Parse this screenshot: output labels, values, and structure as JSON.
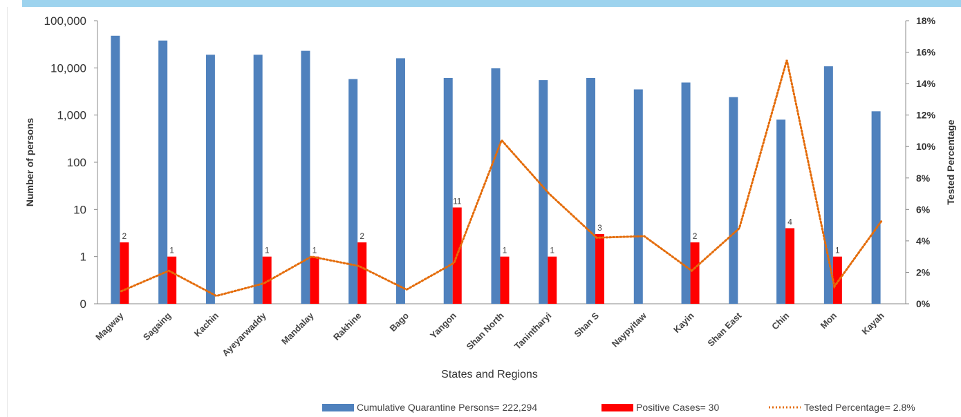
{
  "chart_data": {
    "type": "bar",
    "title": "",
    "xlabel": "States and Regions",
    "ylabel": "Number of persons",
    "y2label": "Tested Percentage",
    "yscale": "log",
    "y_ticks": [
      "100,000",
      "10,000",
      "1,000",
      "100",
      "10",
      "1",
      "0"
    ],
    "y2_ticks": [
      "18%",
      "16%",
      "14%",
      "12%",
      "10%",
      "8%",
      "6%",
      "4%",
      "2%",
      "0%"
    ],
    "y2lim": [
      0,
      18
    ],
    "categories": [
      "Magway",
      "Sagaing",
      "Kachin",
      "Ayeyarwaddy",
      "Mandalay",
      "Rakhine",
      "Bago",
      "Yangon",
      "Shan North",
      "Tanintharyi",
      "Shan S",
      "Naypyitaw",
      "Kayin",
      "Shan East",
      "Chin",
      "Mon",
      "Kayah"
    ],
    "series": [
      {
        "name": "Cumulative Quarantine Persons= 222,294",
        "kind": "bar",
        "axis": "left",
        "color": "#4f81bd",
        "values": [
          48000,
          38000,
          19000,
          19000,
          23000,
          5800,
          16000,
          6100,
          9800,
          5500,
          6100,
          3500,
          4900,
          2400,
          800,
          10800,
          1200
        ]
      },
      {
        "name": "Positive Cases= 30",
        "kind": "bar",
        "axis": "left",
        "color": "#ff0000",
        "values": [
          2,
          1,
          null,
          1,
          1,
          2,
          null,
          11,
          1,
          1,
          3,
          null,
          2,
          null,
          4,
          1,
          null
        ],
        "labels": [
          "2",
          "1",
          "",
          "1",
          "1",
          "2",
          "",
          "11",
          "1",
          "1",
          "3",
          "",
          "2",
          "",
          "4",
          "1",
          ""
        ]
      },
      {
        "name": "Tested Percentage= 2.8%",
        "kind": "line",
        "style": "dotted",
        "axis": "right",
        "color": "#e46c0a",
        "values": [
          0.8,
          2.1,
          0.5,
          1.3,
          3.0,
          2.4,
          0.9,
          2.6,
          10.4,
          7.0,
          4.2,
          4.3,
          2.1,
          4.8,
          15.5,
          1.1,
          5.3
        ]
      }
    ],
    "legend": "bottom",
    "grid": false
  }
}
